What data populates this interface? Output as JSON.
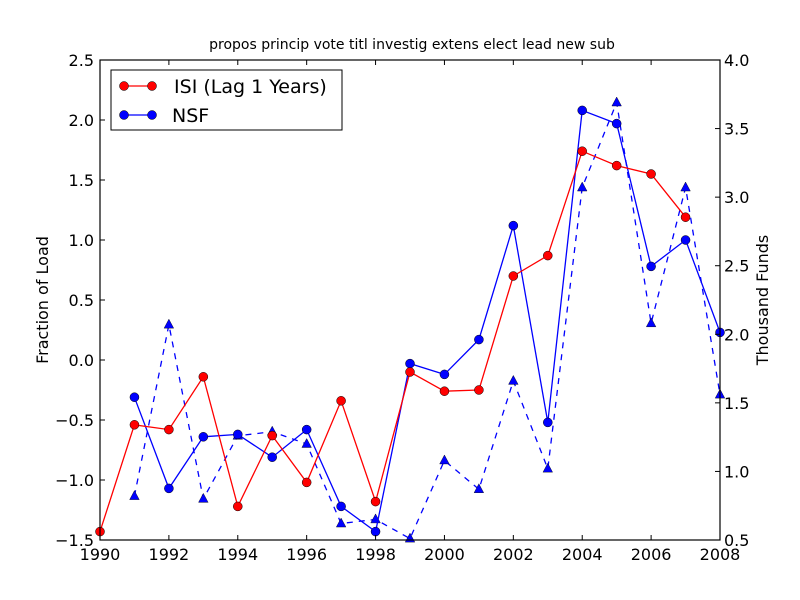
{
  "chart_data": {
    "type": "line",
    "title": "propos princip vote titl investig extens elect lead new sub",
    "xlabel": "",
    "ylabel": "Fraction of Load",
    "ylabel_right": "Thousand Funds",
    "xlim": [
      1990,
      2008
    ],
    "ylim": [
      -1.5,
      2.5
    ],
    "ylim_right": [
      0.5,
      4.0
    ],
    "grid": false,
    "legend_position": "top-left",
    "x_ticks": [
      "1990",
      "1992",
      "1994",
      "1996",
      "1998",
      "2000",
      "2002",
      "2004",
      "2006",
      "2008"
    ],
    "y_ticks": [
      "−1.5",
      "−1.0",
      "−0.5",
      "0.0",
      "0.5",
      "1.0",
      "1.5",
      "2.0",
      "2.5"
    ],
    "y_ticks_right": [
      "0.5",
      "1.0",
      "1.5",
      "2.0",
      "2.5",
      "3.0",
      "3.5",
      "4.0"
    ],
    "series": [
      {
        "name": "ISI (Lag 1 Years)",
        "axis": "left",
        "color": "#ff0000",
        "marker": "circle",
        "linestyle": "solid",
        "x": [
          1990,
          1991,
          1992,
          1993,
          1994,
          1995,
          1996,
          1997,
          1998,
          1999,
          2000,
          2001,
          2002,
          2003,
          2004,
          2005,
          2006,
          2007
        ],
        "values": [
          -1.43,
          -0.54,
          -0.58,
          -0.14,
          -1.22,
          -0.63,
          -1.02,
          -0.34,
          -1.18,
          -0.1,
          -0.26,
          -0.25,
          0.7,
          0.87,
          1.74,
          1.62,
          1.55,
          1.19
        ]
      },
      {
        "name": "NSF",
        "axis": "left",
        "color": "#0000ff",
        "marker": "circle",
        "linestyle": "solid",
        "x": [
          1991,
          1992,
          1993,
          1994,
          1995,
          1996,
          1997,
          1998,
          1999,
          2000,
          2001,
          2002,
          2003,
          2004,
          2005,
          2006,
          2007,
          2008
        ],
        "values": [
          -0.31,
          -1.07,
          -0.64,
          -0.62,
          -0.81,
          -0.58,
          -1.22,
          -1.43,
          -0.03,
          -0.12,
          0.17,
          1.12,
          -0.52,
          2.08,
          1.97,
          0.78,
          1.0,
          0.23
        ]
      },
      {
        "name": "Thousand Funds",
        "axis": "right",
        "color": "#0000ff",
        "marker": "triangle",
        "linestyle": "dashed",
        "x": [
          1991,
          1992,
          1993,
          1994,
          1995,
          1996,
          1997,
          1998,
          1999,
          2000,
          2001,
          2002,
          2003,
          2004,
          2005,
          2006,
          2007,
          2008
        ],
        "values": [
          0.82,
          2.07,
          0.8,
          1.26,
          1.29,
          1.2,
          0.62,
          0.65,
          0.51,
          1.08,
          0.87,
          1.66,
          1.02,
          3.07,
          3.69,
          2.08,
          3.07,
          1.56
        ]
      }
    ],
    "legend": [
      {
        "label": " ISI (Lag 1 Years)",
        "color": "#ff0000"
      },
      {
        "label": "NSF",
        "color": "#0000ff"
      }
    ]
  }
}
